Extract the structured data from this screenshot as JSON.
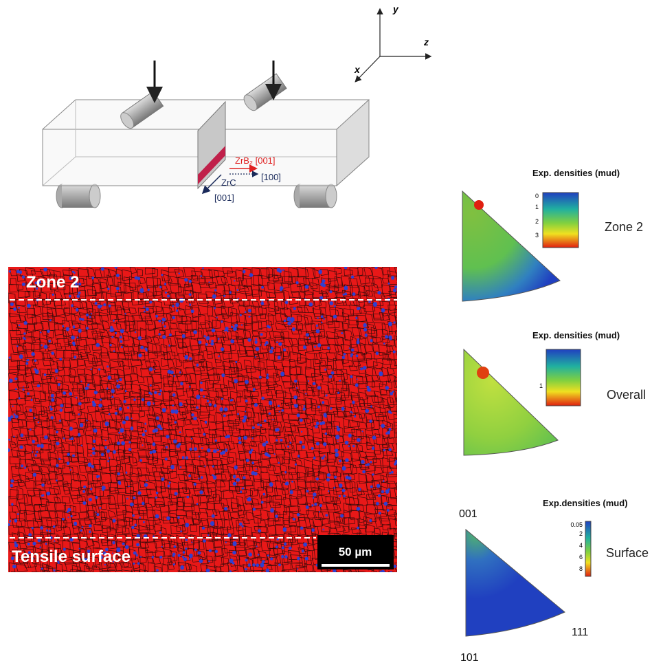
{
  "axes": {
    "y": "y",
    "z": "z",
    "x": "x"
  },
  "beam": {
    "zrb2": "ZrB₂ [001]",
    "dir100": "[100]",
    "zrc": "ZrC",
    "zrc_dir": "[001]"
  },
  "micrograph": {
    "top_label": "Zone 2",
    "bottom_label": "Tensile surface",
    "scale_bar": "50 µm"
  },
  "pole_figures": [
    {
      "legend_title": "Exp. densities (mud)",
      "ticks": [
        "0",
        "1",
        "2",
        "3"
      ],
      "label": "Zone 2"
    },
    {
      "legend_title": "Exp. densities (mud)",
      "ticks": [
        "1"
      ],
      "label": "Overall"
    },
    {
      "legend_title": "Exp.densities (mud)",
      "ticks": [
        "0.05",
        "2",
        "4",
        "6",
        "8"
      ],
      "label": "Surface",
      "corners": {
        "top": "001",
        "right": "111",
        "bottom": "101"
      }
    }
  ]
}
